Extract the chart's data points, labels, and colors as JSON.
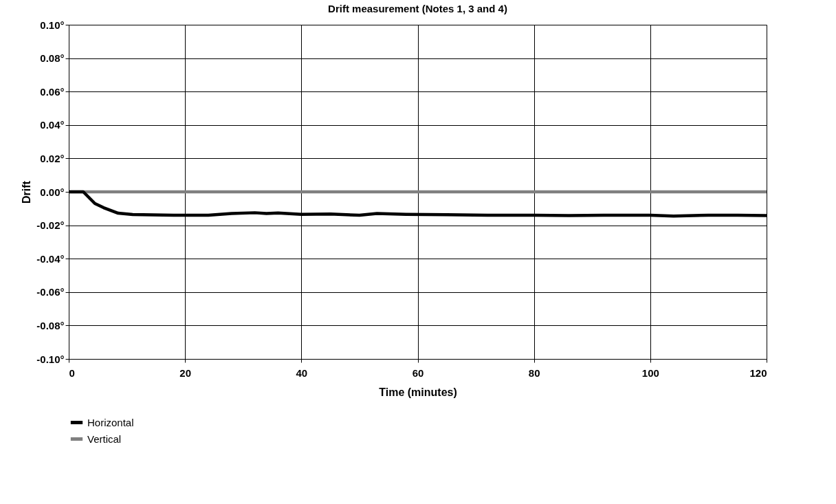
{
  "chart_data": {
    "type": "line",
    "title": "Drift measurement (Notes 1, 3 and 4)",
    "xlabel": "Time (minutes)",
    "ylabel": "Drift",
    "xlim": [
      0,
      120
    ],
    "xticks": [
      0,
      20,
      40,
      60,
      80,
      100,
      120
    ],
    "ylim": [
      -0.1,
      0.1
    ],
    "yticks": [
      {
        "value": -0.1,
        "label": "-0.10°"
      },
      {
        "value": -0.08,
        "label": "-0.08°"
      },
      {
        "value": -0.06,
        "label": "-0.06°"
      },
      {
        "value": -0.04,
        "label": "-0.04°"
      },
      {
        "value": -0.02,
        "label": "-0.02°"
      },
      {
        "value": 0,
        "label": "0.00°"
      },
      {
        "value": 0.02,
        "label": "0.02°"
      },
      {
        "value": 0.04,
        "label": "0.04°"
      },
      {
        "value": 0.06,
        "label": "0.06°"
      },
      {
        "value": 0.08,
        "label": "0.08°"
      },
      {
        "value": 0.1,
        "label": "0.10°"
      }
    ],
    "grid": true,
    "legend": "bottom",
    "line_style": "solid",
    "marker": "none",
    "series": [
      {
        "name": "Horizontal",
        "color": "#000000",
        "x": [
          0,
          2.5,
          4.5,
          6,
          8.5,
          11,
          18,
          24,
          28,
          32,
          34,
          36,
          40,
          45,
          50,
          53,
          58,
          65,
          72,
          80,
          86,
          92,
          100,
          104,
          110,
          115,
          120
        ],
        "values": [
          0,
          0,
          -0.007,
          -0.0095,
          -0.0128,
          -0.0136,
          -0.014,
          -0.014,
          -0.013,
          -0.0125,
          -0.013,
          -0.0127,
          -0.0135,
          -0.0133,
          -0.014,
          -0.013,
          -0.0135,
          -0.0137,
          -0.014,
          -0.014,
          -0.0142,
          -0.014,
          -0.014,
          -0.0145,
          -0.014,
          -0.014,
          -0.0142
        ]
      },
      {
        "name": "Vertical",
        "color": "#808080",
        "x": [
          0,
          120
        ],
        "values": [
          0,
          0
        ]
      }
    ]
  }
}
